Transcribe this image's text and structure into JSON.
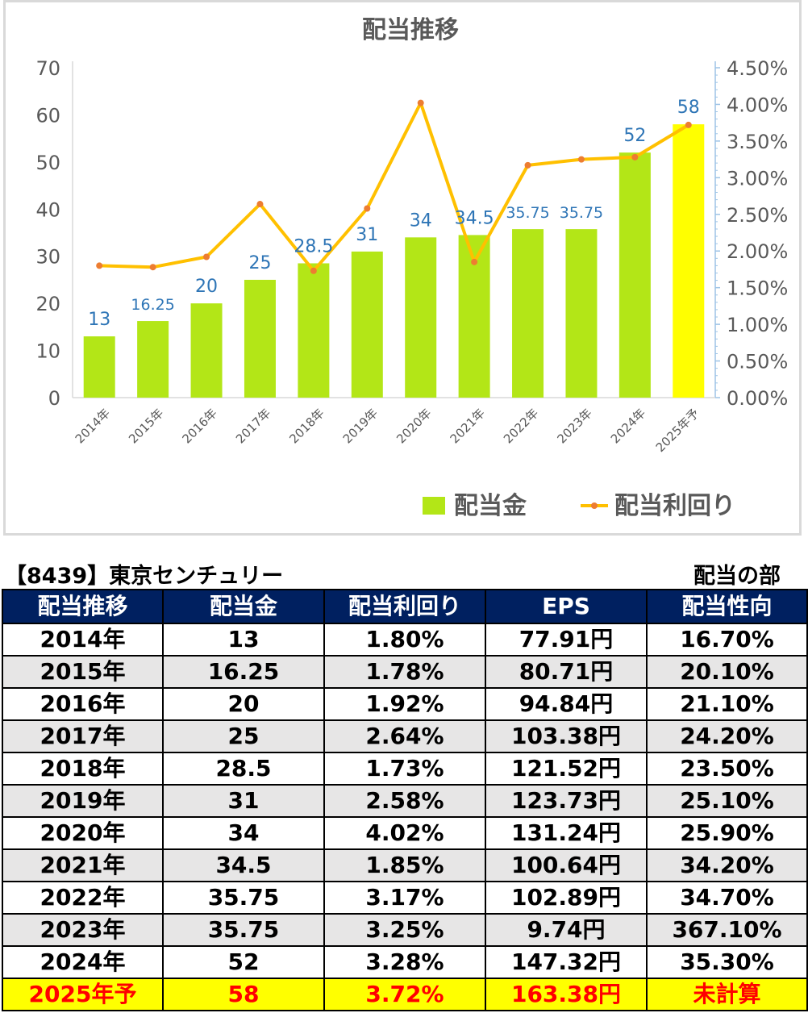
{
  "chart_data": {
    "type": "bar+line",
    "title": "配当推移",
    "categories": [
      "2014年",
      "2015年",
      "2016年",
      "2017年",
      "2018年",
      "2019年",
      "2020年",
      "2021年",
      "2022年",
      "2023年",
      "2024年",
      "2025年予"
    ],
    "series": [
      {
        "name": "配当金",
        "type": "bar",
        "axis": "left",
        "values": [
          13,
          16.25,
          20,
          25,
          28.5,
          31,
          34,
          34.5,
          35.75,
          35.75,
          52,
          58
        ],
        "labels": [
          "13",
          "16.25",
          "20",
          "25",
          "28.5",
          "31",
          "34",
          "34.5",
          "35.75",
          "35.75",
          "52",
          "58"
        ],
        "color": "#b3e617",
        "highlight_color": "#ffff00"
      },
      {
        "name": "配当利回り",
        "type": "line",
        "axis": "right",
        "values": [
          1.8,
          1.78,
          1.92,
          2.64,
          1.73,
          2.58,
          4.02,
          1.85,
          3.17,
          3.25,
          3.28,
          3.72
        ],
        "color": "#ffc000",
        "marker_color": "#ed7d31"
      }
    ],
    "y_left": {
      "ylim": [
        0,
        70
      ],
      "ticks": [
        "0",
        "10",
        "20",
        "30",
        "40",
        "50",
        "60",
        "70"
      ]
    },
    "y_right": {
      "ylim": [
        0,
        4.5
      ],
      "ticks": [
        "0.00%",
        "0.50%",
        "1.00%",
        "1.50%",
        "2.00%",
        "2.50%",
        "3.00%",
        "3.50%",
        "4.00%",
        "4.50%"
      ]
    },
    "grid": false,
    "legend": "bottom-right"
  },
  "table": {
    "code_title": "【8439】東京センチュリー",
    "section_label": "配当の部",
    "headers": [
      "配当推移",
      "配当金",
      "配当利回り",
      "EPS",
      "配当性向"
    ],
    "rows": [
      [
        "2014年",
        "13",
        "1.80%",
        "77.91円",
        "16.70%"
      ],
      [
        "2015年",
        "16.25",
        "1.78%",
        "80.71円",
        "20.10%"
      ],
      [
        "2016年",
        "20",
        "1.92%",
        "94.84円",
        "21.10%"
      ],
      [
        "2017年",
        "25",
        "2.64%",
        "103.38円",
        "24.20%"
      ],
      [
        "2018年",
        "28.5",
        "1.73%",
        "121.52円",
        "23.50%"
      ],
      [
        "2019年",
        "31",
        "2.58%",
        "123.73円",
        "25.10%"
      ],
      [
        "2020年",
        "34",
        "4.02%",
        "131.24円",
        "25.90%"
      ],
      [
        "2021年",
        "34.5",
        "1.85%",
        "100.64円",
        "34.20%"
      ],
      [
        "2022年",
        "35.75",
        "3.17%",
        "102.89円",
        "34.70%"
      ],
      [
        "2023年",
        "35.75",
        "3.25%",
        "9.74円",
        "367.10%"
      ],
      [
        "2024年",
        "52",
        "3.28%",
        "147.32円",
        "35.30%"
      ],
      [
        "2025年予",
        "58",
        "3.72%",
        "163.38円",
        "未計算"
      ]
    ]
  }
}
